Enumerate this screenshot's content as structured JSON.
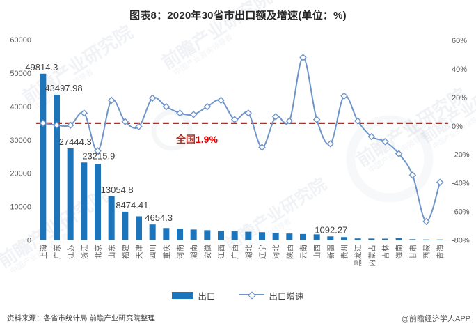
{
  "title": "图表8：2020年30省市出口额及增速(单位：%)",
  "legend": {
    "export": "出口",
    "growth": "出口增速"
  },
  "national": {
    "prefix": "全国",
    "value": "1.9%"
  },
  "footer": {
    "source": "资料来源：各省市统计局 前瞻产业研究院整理",
    "credit": "@前瞻经济学人APP"
  },
  "watermark": {
    "main": "前瞻产业研究院",
    "sub": "中国产业咨询领导者"
  },
  "colors": {
    "bar": "#1C74BA",
    "line": "#6F94C8",
    "marker_fill": "#FFFFFF",
    "national_line": "#A5342D",
    "national_value": "#E60000",
    "axis_text": "#595959",
    "label_text": "#3F3F3F",
    "axis_line": "#C9C9C9",
    "watermark": "#8FA3B8"
  },
  "chart_data": {
    "type": "bar",
    "subtype": "bar+line combo, dual axis",
    "title": "图表8：2020年30省市出口额及增速(单位：%)",
    "categories": [
      "上海",
      "广东",
      "江苏",
      "浙江",
      "北京",
      "山东",
      "福建",
      "天津",
      "四川",
      "重庆",
      "河南",
      "湖南",
      "安徽",
      "江西",
      "广西",
      "湖北",
      "辽宁",
      "河北",
      "陕西",
      "云南",
      "山西",
      "新疆",
      "贵州",
      "黑龙江",
      "内蒙古",
      "吉林",
      "海南",
      "甘肃",
      "西藏",
      "青海"
    ],
    "series": [
      {
        "name": "出口",
        "type": "bar",
        "axis": "left",
        "values": [
          49814.3,
          43497.98,
          27444.3,
          23215.9,
          22800,
          13054.8,
          8474.41,
          7100,
          4654.3,
          3600,
          3400,
          3150,
          2950,
          2750,
          2600,
          2480,
          2350,
          2150,
          1950,
          1800,
          1700,
          1092.27,
          880,
          480,
          450,
          420,
          550,
          240,
          110,
          30
        ]
      },
      {
        "name": "出口增速",
        "type": "line",
        "axis": "right",
        "unit": "%",
        "values": [
          2.0,
          0.5,
          0.5,
          9.0,
          -17.5,
          18.0,
          3.0,
          -0.5,
          19.5,
          13.5,
          9.0,
          8.0,
          13.5,
          18.0,
          4.5,
          9.0,
          -15.0,
          6.5,
          3.5,
          48.0,
          4.5,
          -12.5,
          21.0,
          3.5,
          -7.5,
          -11.0,
          -19.5,
          -34.5,
          -67.0,
          -39.5
        ]
      }
    ],
    "bar_labels": [
      {
        "index": 0,
        "text": "49814.3",
        "dx": -2
      },
      {
        "index": 1,
        "text": "43497.98",
        "dx": 10
      },
      {
        "index": 2,
        "text": "27444.3",
        "dx": 7
      },
      {
        "index": 3,
        "text": "23215.9",
        "dx": 21
      },
      {
        "index": 5,
        "text": "13054.8",
        "dx": 8
      },
      {
        "index": 6,
        "text": "8474.41",
        "dx": 10
      },
      {
        "index": 8,
        "text": "4654.3",
        "dx": 9
      },
      {
        "index": 21,
        "text": "1092.27",
        "dx": 1
      }
    ],
    "left_axis": {
      "min": 0,
      "max": 60000,
      "step": 10000,
      "ticks": [
        "60000",
        "50000",
        "40000",
        "30000",
        "20000",
        "10000",
        "0"
      ]
    },
    "right_axis": {
      "min": -80,
      "max": 60,
      "step": 20,
      "ticks": [
        "60%",
        "40%",
        "20%",
        "0%",
        "-20%",
        "-40%",
        "-60%",
        "-80%"
      ]
    },
    "national_line_pct": 1.9,
    "grid": false,
    "legend_position": "bottom"
  }
}
